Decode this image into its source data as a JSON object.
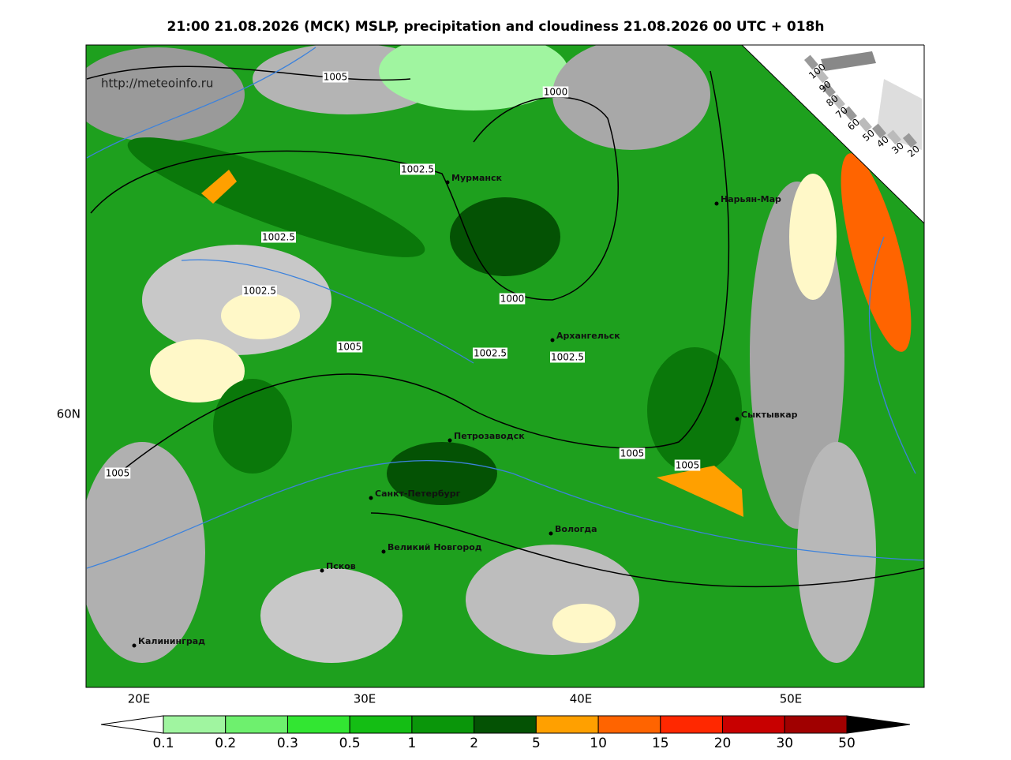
{
  "title": "21:00 21.08.2026 (МСК) MSLP, precipitation and cloudiness 21.08.2026 00 UTC + 018h",
  "source": "http://meteoinfo.ru",
  "isobar_labels": [
    "1005",
    "1000",
    "1002.5",
    "1002.5",
    "1002.5",
    "1000",
    "1005",
    "1002.5",
    "1002.5",
    "1005",
    "1005",
    "1005"
  ],
  "cities": [
    "Мурманск",
    "Нарьян-Мар",
    "Архангельск",
    "Сыктывкар",
    "Петрозаводск",
    "Санкт-Петербург",
    "Вологда",
    "Великий Новгород",
    "Псков",
    "Калининград"
  ],
  "lon_labels": [
    "20E",
    "30E",
    "40E",
    "50E"
  ],
  "lat_labels": [
    "60N"
  ],
  "cloud_scale": [
    100,
    90,
    80,
    70,
    60,
    50,
    40,
    30,
    20
  ],
  "colorbar": {
    "labels": [
      0.1,
      0.2,
      0.3,
      0.5,
      1,
      2,
      5,
      10,
      15,
      20,
      30,
      50
    ],
    "colors": [
      "#a0f5a0",
      "#6ef06e",
      "#32e632",
      "#14be14",
      "#0a960a",
      "#045204",
      "#ffa000",
      "#ff6400",
      "#ff2800",
      "#c80000",
      "#a00000"
    ]
  }
}
